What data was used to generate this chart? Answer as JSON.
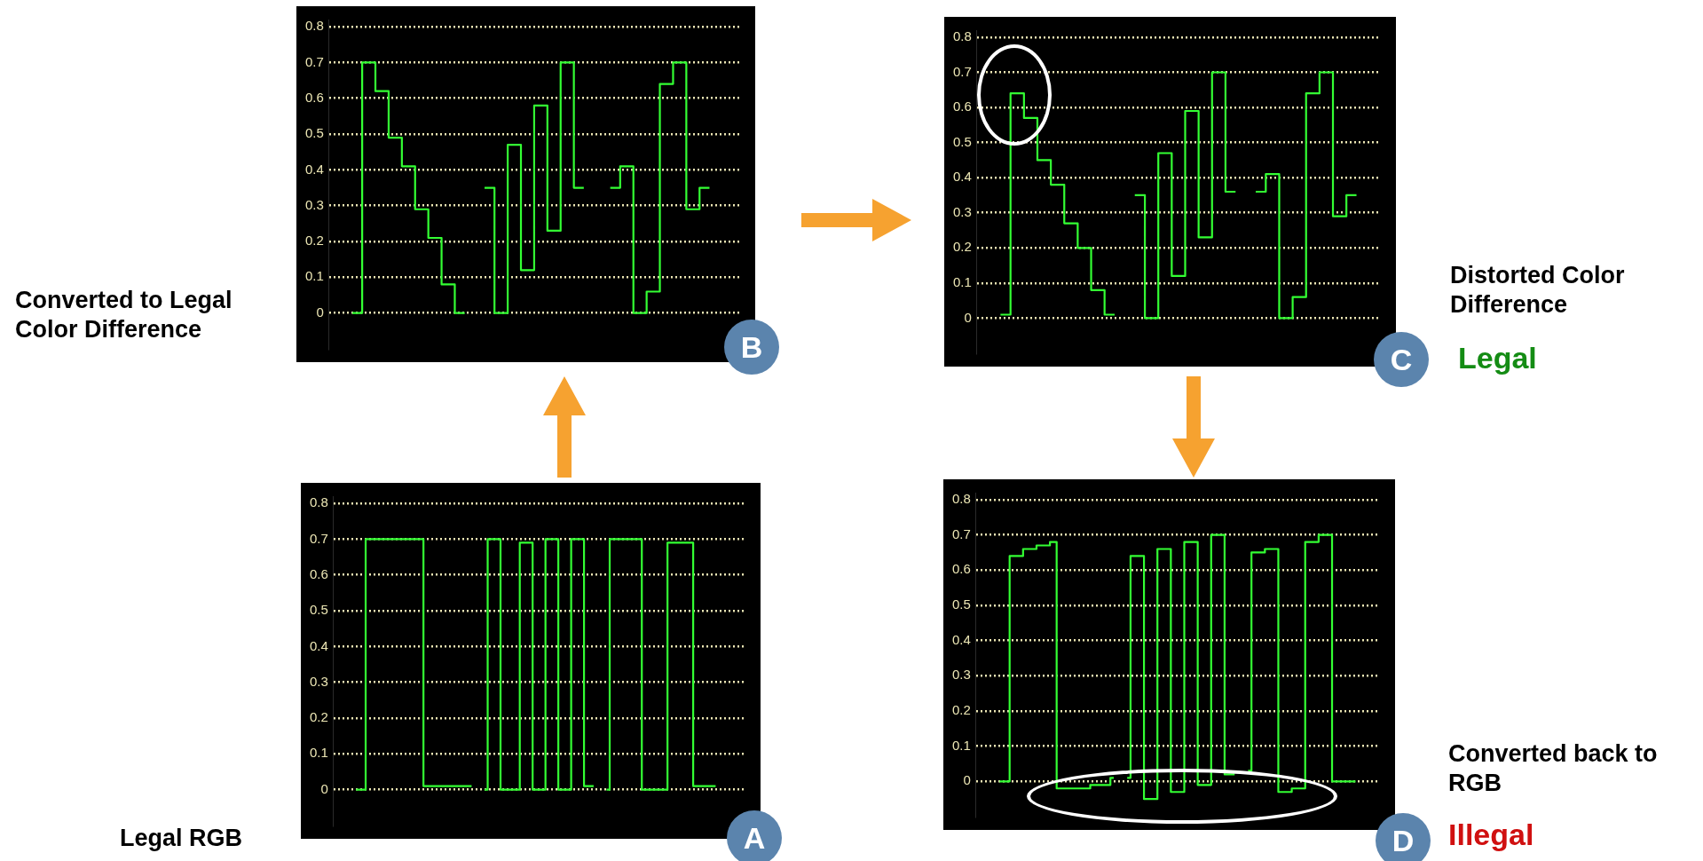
{
  "chart_data": [
    {
      "type": "step",
      "annotations": [
        "Converted to Legal Color Difference",
        "B"
      ],
      "categories": [
        null,
        null,
        null,
        null,
        null,
        null,
        null,
        null,
        null,
        null,
        null,
        null,
        null,
        null,
        null,
        null,
        null,
        null,
        null,
        null,
        null,
        null,
        null,
        null,
        null,
        null,
        null,
        null,
        null,
        null,
        null,
        null,
        null,
        null,
        null,
        null,
        null,
        null,
        null,
        null,
        null,
        null,
        null,
        null,
        null,
        null,
        null,
        null,
        null,
        null,
        null,
        null,
        null,
        null,
        null,
        null,
        null,
        null,
        null,
        null,
        null,
        null
      ],
      "series": [
        {
          "color": "#33ff33",
          "values": [
            null,
            null,
            null,
            0,
            0,
            0.7,
            0.7,
            0.62,
            0.62,
            0.49,
            0.49,
            0.41,
            0.41,
            0.29,
            0.29,
            0.21,
            0.21,
            0.08,
            0.08,
            0,
            0,
            null,
            null,
            0.35,
            0.35,
            0,
            0,
            0.47,
            0.47,
            0.12,
            0.12,
            0.58,
            0.58,
            0.23,
            0.23,
            0.7,
            0.7,
            0.35,
            0.35,
            null,
            null,
            null,
            0.35,
            0.35,
            0.41,
            0.41,
            0,
            0,
            0.06,
            0.06,
            0.64,
            0.64,
            0.7,
            0.7,
            0.29,
            0.29,
            0.35,
            0.35,
            null,
            null,
            null,
            null
          ]
        }
      ],
      "ylim": [
        -0.1,
        0.82
      ],
      "yticks": [
        0,
        0.1,
        0.2,
        0.3,
        0.4,
        0.5,
        0.6,
        0.7,
        0.8
      ],
      "grid": "y",
      "tick_labels": "y",
      "marker": "none",
      "line_style": "solid",
      "legend": false
    },
    {
      "type": "step",
      "annotations": [
        "Distorted Color Difference",
        "C",
        "Legal"
      ],
      "categories": [
        null,
        null,
        null,
        null,
        null,
        null,
        null,
        null,
        null,
        null,
        null,
        null,
        null,
        null,
        null,
        null,
        null,
        null,
        null,
        null,
        null,
        null,
        null,
        null,
        null,
        null,
        null,
        null,
        null,
        null,
        null,
        null,
        null,
        null,
        null,
        null,
        null,
        null,
        null,
        null,
        null,
        null,
        null,
        null,
        null,
        null,
        null,
        null,
        null,
        null,
        null,
        null,
        null,
        null,
        null,
        null,
        null,
        null,
        null,
        null
      ],
      "series": [
        {
          "color": "#33ff33",
          "values": [
            null,
            null,
            null,
            0.01,
            0.01,
            0.64,
            0.64,
            0.57,
            0.57,
            0.45,
            0.45,
            0.38,
            0.38,
            0.27,
            0.27,
            0.2,
            0.2,
            0.08,
            0.08,
            0.01,
            0.01,
            null,
            null,
            0.35,
            0.35,
            0,
            0,
            0.47,
            0.47,
            0.12,
            0.12,
            0.59,
            0.59,
            0.23,
            0.23,
            0.7,
            0.7,
            0.36,
            0.36,
            null,
            null,
            0.36,
            0.36,
            0.41,
            0.41,
            0,
            0,
            0.06,
            0.06,
            0.64,
            0.64,
            0.7,
            0.7,
            0.29,
            0.29,
            0.35,
            0.35,
            null,
            null,
            null
          ]
        }
      ],
      "ylim": [
        -0.1,
        0.82
      ],
      "yticks": [
        0,
        0.1,
        0.2,
        0.3,
        0.4,
        0.5,
        0.6,
        0.7,
        0.8
      ],
      "grid": "y",
      "tick_labels": "y",
      "marker": "none",
      "line_style": "solid",
      "legend": false
    },
    {
      "type": "step",
      "annotations": [
        "Legal RGB",
        "A"
      ],
      "categories": [
        null,
        null,
        null,
        null,
        null,
        null,
        null,
        null,
        null,
        null,
        null,
        null,
        null,
        null,
        null,
        null,
        null,
        null,
        null,
        null,
        null,
        null,
        null,
        null,
        null,
        null,
        null,
        null,
        null,
        null,
        null,
        null,
        null,
        null,
        null,
        null,
        null,
        null,
        null,
        null,
        null,
        null,
        null,
        null,
        null,
        null,
        null,
        null,
        null,
        null,
        null,
        null,
        null,
        null,
        null,
        null,
        null,
        null,
        null,
        null,
        null,
        null,
        null,
        null
      ],
      "series": [
        {
          "color": "#33ff33",
          "values": [
            null,
            null,
            null,
            0,
            0,
            0.7,
            0.7,
            0.7,
            0.7,
            0.7,
            0.7,
            0.7,
            0.7,
            0.7,
            0.01,
            0.01,
            0.01,
            0.01,
            0.01,
            0.01,
            0.01,
            0.01,
            null,
            0,
            0.7,
            0.7,
            0,
            0,
            0,
            0.69,
            0.69,
            0,
            0,
            0.7,
            0.7,
            0,
            0,
            0.7,
            0.7,
            0.01,
            0.01,
            null,
            0,
            0.7,
            0.7,
            0.7,
            0.7,
            0.7,
            0,
            0,
            0,
            0,
            0.69,
            0.69,
            0.69,
            0.69,
            0.01,
            0.01,
            0.01,
            0.01,
            null,
            null,
            null,
            null
          ]
        }
      ],
      "ylim": [
        -0.1,
        0.82
      ],
      "yticks": [
        0,
        0.1,
        0.2,
        0.3,
        0.4,
        0.5,
        0.6,
        0.7,
        0.8
      ],
      "grid": "y",
      "tick_labels": "y",
      "marker": "none",
      "line_style": "solid",
      "legend": false
    },
    {
      "type": "step",
      "annotations": [
        "Converted back to RGB",
        "D",
        "Illegal"
      ],
      "categories": [
        null,
        null,
        null,
        null,
        null,
        null,
        null,
        null,
        null,
        null,
        null,
        null,
        null,
        null,
        null,
        null,
        null,
        null,
        null,
        null,
        null,
        null,
        null,
        null,
        null,
        null,
        null,
        null,
        null,
        null,
        null,
        null,
        null,
        null,
        null,
        null,
        null,
        null,
        null,
        null,
        null,
        null,
        null,
        null,
        null,
        null,
        null,
        null,
        null,
        null,
        null,
        null,
        null,
        null,
        null,
        null,
        null,
        null,
        null,
        null
      ],
      "series": [
        {
          "color": "#33ff33",
          "values": [
            null,
            null,
            null,
            0,
            0,
            0.64,
            0.64,
            0.66,
            0.66,
            0.67,
            0.67,
            0.68,
            -0.02,
            -0.02,
            -0.02,
            -0.02,
            -0.02,
            -0.01,
            -0.01,
            -0.01,
            0.01,
            null,
            0.01,
            0.64,
            0.64,
            -0.05,
            -0.05,
            0.66,
            0.66,
            -0.03,
            -0.03,
            0.68,
            0.68,
            -0.01,
            -0.01,
            0.7,
            0.7,
            0.02,
            0.02,
            null,
            0.03,
            0.65,
            0.65,
            0.66,
            0.66,
            -0.03,
            -0.03,
            -0.02,
            -0.02,
            0.68,
            0.68,
            0.7,
            0.7,
            0,
            0,
            0,
            0,
            null,
            null,
            null
          ]
        }
      ],
      "ylim": [
        -0.1,
        0.82
      ],
      "yticks": [
        0,
        0.1,
        0.2,
        0.3,
        0.4,
        0.5,
        0.6,
        0.7,
        0.8
      ],
      "grid": "y",
      "tick_labels": "y",
      "marker": "none",
      "line_style": "solid",
      "legend": false
    }
  ]
}
